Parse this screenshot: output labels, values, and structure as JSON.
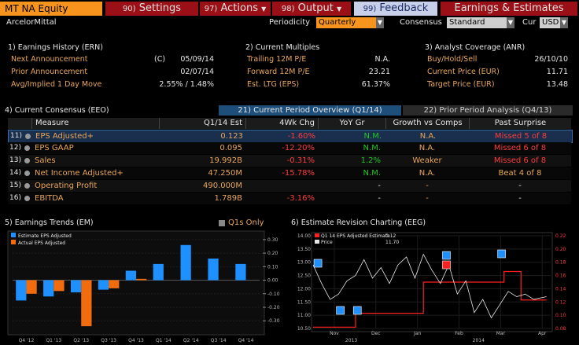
{
  "toolbar": {
    "ticker": "MT NA Equity",
    "settings_num": "90)",
    "settings": "Settings",
    "actions_num": "97)",
    "actions": "Actions",
    "output_num": "98)",
    "output": "Output",
    "feedback_num": "99)",
    "feedback": "Feedback",
    "title": "Earnings & Estimates"
  },
  "subbar": {
    "company": "ArcelorMittal",
    "periodicity_label": "Periodicity",
    "periodicity_value": "Quarterly",
    "consensus_label": "Consensus",
    "consensus_value": "Standard",
    "cur_label": "Cur",
    "cur_value": "USD"
  },
  "history": {
    "header": "1) Earnings History (ERN)",
    "rows": [
      {
        "label": "Next Announcement",
        "flag": "(C)",
        "value": "05/09/14"
      },
      {
        "label": "Prior Announcement",
        "flag": "",
        "value": "02/07/14"
      },
      {
        "label": "Avg/Implied 1 Day Move",
        "flag": "",
        "value": "2.55% / 1.48%"
      }
    ]
  },
  "multiples": {
    "header": "2) Current Multiples",
    "rows": [
      {
        "label": "Trailing 12M P/E",
        "value": "N.A."
      },
      {
        "label": "Forward 12M P/E",
        "value": "23.21"
      },
      {
        "label": "Est. LTG (EPS)",
        "value": "61.37%"
      }
    ]
  },
  "analyst": {
    "header": "3) Analyst Coverage (ANR)",
    "rows": [
      {
        "label": "Buy/Hold/Sell",
        "value": "26/10/10"
      },
      {
        "label": "Current Price (EUR)",
        "value": "11.71"
      },
      {
        "label": "Target Price (EUR)",
        "value": "13.48"
      }
    ]
  },
  "consensus": {
    "header": "4) Current Consensus (EEO)",
    "tab1": "21) Current Period Overview (Q1/14)",
    "tab2": "22) Prior Period Analysis (Q4/13)",
    "columns": [
      "Measure",
      "Q1/14 Est",
      "4Wk Chg",
      "YoY Gr",
      "Growth vs Comps",
      "Past Surprise"
    ],
    "rows": [
      {
        "num": "11)",
        "measure": "EPS Adjusted+",
        "est": "0.123",
        "chg": "-1.60%",
        "yoy": "N.M.",
        "comps": "N.A.",
        "surprise": "Missed 5 of 8"
      },
      {
        "num": "12)",
        "measure": "EPS GAAP",
        "est": "0.095",
        "chg": "-12.20%",
        "yoy": "N.M.",
        "comps": "N.A.",
        "surprise": "Missed 6 of 8"
      },
      {
        "num": "13)",
        "measure": "Sales",
        "est": "19.992B",
        "chg": "-0.31%",
        "yoy": "1.2%",
        "comps": "Weaker",
        "surprise": "Missed 6 of 8"
      },
      {
        "num": "14)",
        "measure": "Net Income Adjusted+",
        "est": "47.250M",
        "chg": "-15.78%",
        "yoy": "N.M.",
        "comps": "N.A.",
        "surprise": "Beat 4 of 8"
      },
      {
        "num": "15)",
        "measure": "Operating Profit",
        "est": "490.000M",
        "chg": "",
        "yoy": "-",
        "comps": "-",
        "surprise": "-"
      },
      {
        "num": "16)",
        "measure": "EBITDA",
        "est": "1.789B",
        "chg": "-3.16%",
        "yoy": "-",
        "comps": "-",
        "surprise": "-"
      }
    ]
  },
  "trends": {
    "header": "5) Earnings Trends (EM)",
    "q1s_label": "Q1s Only",
    "legend": [
      "Estimate EPS Adjusted",
      "Actual EPS Adjusted"
    ],
    "colors": {
      "estimate": "#1e90ff",
      "actual": "#f26c0d"
    },
    "chart_data": {
      "type": "bar",
      "categories": [
        "Q4 '12",
        "Q1 '13",
        "Q2 '13",
        "Q3 '13",
        "Q4 '13",
        "Q1 '14",
        "Q2 '14",
        "Q3 '14",
        "Q4 '14"
      ],
      "tick_labels": [
        "Q4 '12",
        "Q1 '13",
        "Q2 '13",
        "Q3 '13",
        "Q4 '14"
      ],
      "series": [
        {
          "name": "Estimate EPS Adjusted",
          "values": [
            -0.15,
            -0.12,
            -0.09,
            -0.07,
            0.07,
            0.12,
            0.26,
            0.16,
            0.12
          ]
        },
        {
          "name": "Actual EPS Adjusted",
          "values": [
            -0.1,
            -0.08,
            -0.34,
            -0.06,
            0.01,
            null,
            null,
            null,
            null
          ]
        }
      ],
      "yticks": [
        0.3,
        0.2,
        0.1,
        0.0,
        -0.1,
        -0.2,
        -0.3
      ],
      "ytick_labels": [
        "0.30",
        "0.20",
        "0.10",
        "0.00",
        "-0.10",
        "-0.20",
        "-0.30"
      ],
      "ylim": [
        -0.38,
        0.34
      ]
    }
  },
  "revision": {
    "header": "6) Estimate Revision Charting (EEG)",
    "legend": [
      {
        "name": "Q1 14 EPS Adjusted Estimate",
        "value": "0.12"
      },
      {
        "name": "Price",
        "value": "11.70"
      }
    ],
    "colors": {
      "estimate": "#ff2020",
      "price": "#e6e6e6"
    },
    "chart_data": {
      "type": "line",
      "x": [
        "Nov",
        "Dec",
        "Jan",
        "Feb",
        "Mar",
        "Apr"
      ],
      "year_labels": [
        "2013",
        "2014"
      ],
      "yleft": [
        "14.00",
        "13.50",
        "13.00",
        "12.50",
        "12.00",
        "11.50",
        "11.00",
        "10.50"
      ],
      "yright": [
        "0.22",
        "0.20",
        "0.18",
        "0.16",
        "0.14",
        "0.12",
        "0.10",
        "0.08"
      ],
      "series": [
        {
          "name": "Q1 14 EPS Adjusted Estimate",
          "axis": "right",
          "x": [
            0,
            1.0,
            1.0,
            2.6,
            2.6,
            4.5,
            4.5,
            4.9,
            4.9,
            5.5
          ],
          "values": [
            0.082,
            0.082,
            0.103,
            0.103,
            0.15,
            0.15,
            0.166,
            0.166,
            0.123,
            0.123
          ]
        },
        {
          "name": "Price",
          "axis": "left",
          "x": [
            0,
            0.2,
            0.4,
            0.6,
            0.8,
            1.0,
            1.2,
            1.4,
            1.6,
            1.8,
            2.0,
            2.2,
            2.4,
            2.6,
            2.8,
            3.0,
            3.2,
            3.4,
            3.6,
            3.8,
            4.0,
            4.2,
            4.4,
            4.6,
            4.8,
            5.0,
            5.2,
            5.5
          ],
          "values": [
            12.9,
            12.2,
            11.6,
            11.8,
            12.3,
            12.5,
            13.1,
            12.4,
            12.8,
            12.2,
            12.9,
            13.2,
            12.4,
            13.3,
            12.7,
            12.2,
            12.9,
            11.8,
            12.3,
            11.1,
            11.6,
            10.9,
            11.4,
            11.9,
            11.7,
            11.8,
            11.6,
            11.7
          ]
        }
      ]
    }
  }
}
